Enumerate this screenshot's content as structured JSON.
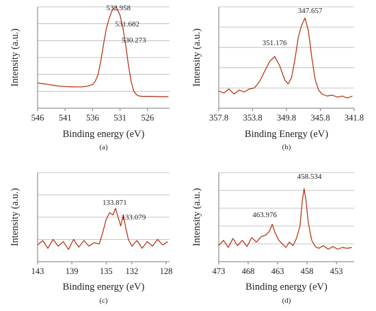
{
  "colors": {
    "line": "#b5381a",
    "grid": "#b3b3b3",
    "axis": "#7a7a7a",
    "text": "#222222"
  },
  "chart_data": [
    {
      "id": "a",
      "type": "line",
      "panel_label": "(a)",
      "xlabel": "Binding energy (eV)",
      "ylabel": "Intensity (a.u.)",
      "xlim": [
        546,
        522
      ],
      "ylim": [
        0,
        6
      ],
      "xticks": [
        546,
        541,
        536,
        531,
        526
      ],
      "xtick_labels": [
        "546",
        "541",
        "536",
        "531",
        "526"
      ],
      "grid": true,
      "annotations": [
        {
          "text": "532.958",
          "x": 531.3,
          "y": 5.8
        },
        {
          "text": "531.682",
          "x": 529.7,
          "y": 4.85
        },
        {
          "text": "530.273",
          "x": 528.5,
          "y": 3.9
        }
      ],
      "series": [
        {
          "x": [
            546,
            545,
            544,
            543,
            542,
            541,
            540,
            539,
            538,
            537,
            536,
            535.5,
            535,
            534.5,
            534,
            533.5,
            533,
            532.5,
            532,
            531.7,
            531.5,
            531,
            530.5,
            530,
            529.5,
            529,
            528.5,
            528,
            527.5,
            527,
            526,
            525,
            524,
            523,
            522.2
          ],
          "y": [
            1.5,
            1.45,
            1.4,
            1.35,
            1.3,
            1.28,
            1.27,
            1.26,
            1.26,
            1.3,
            1.4,
            1.6,
            2.0,
            2.8,
            3.8,
            4.7,
            5.3,
            5.75,
            5.95,
            6.0,
            5.85,
            5.5,
            4.8,
            3.8,
            2.6,
            1.6,
            1.0,
            0.8,
            0.72,
            0.7,
            0.7,
            0.7,
            0.68,
            0.68,
            0.68
          ]
        }
      ]
    },
    {
      "id": "b",
      "type": "line",
      "panel_label": "(b)",
      "xlabel": "Binding Energy (eV)",
      "ylabel": "Intensity (a.u.)",
      "xlim": [
        357.8,
        341.8
      ],
      "ylim": [
        0,
        5
      ],
      "xticks": [
        357.8,
        353.8,
        349.8,
        345.8,
        341.8
      ],
      "xtick_labels": [
        "357.8",
        "353.8",
        "349.8",
        "345.8",
        "341.8"
      ],
      "grid": true,
      "annotations": [
        {
          "text": "351.176",
          "x": 351.2,
          "y": 3.1
        },
        {
          "text": "347.657",
          "x": 347.0,
          "y": 4.7
        }
      ],
      "series": [
        {
          "x": [
            357.8,
            357.2,
            356.6,
            356.0,
            355.4,
            354.8,
            354.2,
            353.6,
            353.0,
            352.4,
            351.8,
            351.2,
            350.6,
            350.0,
            349.6,
            349.2,
            348.8,
            348.4,
            348.0,
            347.6,
            347.2,
            346.8,
            346.4,
            346.0,
            345.6,
            345.0,
            344.4,
            343.8,
            343.2,
            342.6,
            342.0
          ],
          "y": [
            0.85,
            0.75,
            0.95,
            0.7,
            0.9,
            0.8,
            0.95,
            1.0,
            1.3,
            1.8,
            2.3,
            2.55,
            2.1,
            1.4,
            1.2,
            1.5,
            2.4,
            3.5,
            4.1,
            4.45,
            3.8,
            2.5,
            1.4,
            0.9,
            0.7,
            0.6,
            0.65,
            0.55,
            0.6,
            0.5,
            0.6
          ]
        }
      ]
    },
    {
      "id": "c",
      "type": "line",
      "panel_label": "(c)",
      "xlabel": "Binding energy (eV)",
      "ylabel": "Intensity (a.u.)",
      "xlim": [
        143,
        127.6
      ],
      "ylim": [
        0,
        4
      ],
      "xticks": [
        143,
        139,
        135,
        132,
        128
      ],
      "xtick_labels": [
        "143",
        "139",
        "135",
        "132",
        "128"
      ],
      "grid": true,
      "annotations": [
        {
          "text": "133.871",
          "x": 134.0,
          "y": 2.55
        },
        {
          "text": "133.079",
          "x": 131.8,
          "y": 1.9
        }
      ],
      "series": [
        {
          "x": [
            143,
            142.4,
            141.8,
            141.2,
            140.6,
            140,
            139.4,
            138.8,
            138.2,
            137.6,
            137,
            136.4,
            135.8,
            135.4,
            135,
            134.6,
            134.2,
            133.9,
            133.6,
            133.3,
            133.0,
            132.7,
            132.4,
            132.0,
            131.4,
            130.8,
            130.2,
            129.6,
            129,
            128.4,
            127.8
          ],
          "y": [
            0.75,
            0.95,
            0.6,
            1.0,
            0.7,
            0.9,
            0.55,
            1.0,
            0.65,
            0.95,
            0.7,
            0.85,
            0.8,
            1.3,
            1.9,
            2.2,
            2.1,
            2.4,
            2.0,
            1.6,
            2.1,
            1.5,
            1.0,
            0.7,
            0.95,
            0.6,
            0.9,
            0.7,
            1.0,
            0.75,
            0.9
          ]
        }
      ]
    },
    {
      "id": "d",
      "type": "line",
      "panel_label": "(d)",
      "xlabel": "Binding energy (eV)",
      "ylabel": "Intensity (a.u.)",
      "xlim": [
        473,
        450
      ],
      "ylim": [
        0,
        5
      ],
      "xticks": [
        473,
        468,
        463,
        458,
        453
      ],
      "xtick_labels": [
        "473",
        "468",
        "463",
        "458",
        "453"
      ],
      "grid": true,
      "annotations": [
        {
          "text": "463.976",
          "x": 465.2,
          "y": 2.5
        },
        {
          "text": "458.534",
          "x": 457.6,
          "y": 4.65
        }
      ],
      "series": [
        {
          "x": [
            473,
            472.2,
            471.4,
            470.6,
            469.8,
            469,
            468.2,
            467.4,
            466.6,
            465.8,
            465,
            464.4,
            463.9,
            463.4,
            462.8,
            462.2,
            461.6,
            461,
            460.4,
            459.8,
            459.2,
            458.8,
            458.5,
            458.2,
            457.8,
            457.2,
            456.6,
            456,
            455.2,
            454.4,
            453.6,
            452.8,
            452,
            451.2,
            450.4
          ],
          "y": [
            0.9,
            1.2,
            0.8,
            1.3,
            0.9,
            1.2,
            0.85,
            1.35,
            1.1,
            1.4,
            1.5,
            1.7,
            2.1,
            1.6,
            1.2,
            1.0,
            0.8,
            1.1,
            0.9,
            1.3,
            2.0,
            3.4,
            4.1,
            3.5,
            2.2,
            1.2,
            0.85,
            0.75,
            0.9,
            0.7,
            0.85,
            0.7,
            0.8,
            0.75,
            0.8
          ]
        }
      ]
    }
  ]
}
